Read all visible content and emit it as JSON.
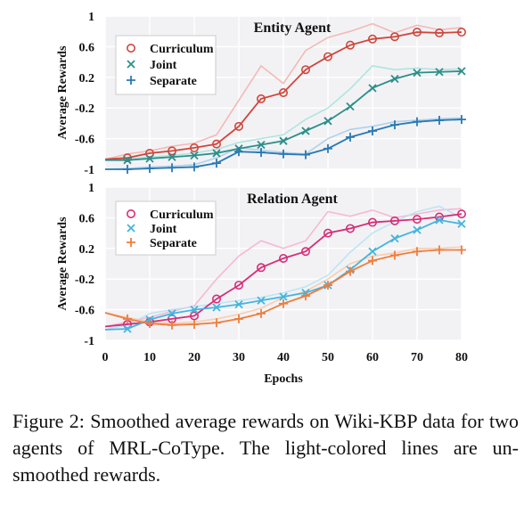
{
  "chart_data": [
    {
      "type": "line",
      "title": "Entity Agent",
      "xlabel": "",
      "ylabel": "Average Rewards",
      "xlim": [
        0,
        80
      ],
      "ylim": [
        -1,
        1
      ],
      "yticks": [
        "1",
        "0.6",
        "0.2",
        "-0.2",
        "-0.6",
        "-1"
      ],
      "ytick_values": [
        1,
        0.6,
        0.2,
        -0.2,
        -0.6,
        -1
      ],
      "grid": true,
      "legend": "top-left",
      "series": [
        {
          "name": "Curriculum",
          "marker": "circle",
          "color": "#d0463c",
          "light_color": "#f4b3ae",
          "x": [
            0,
            5,
            10,
            15,
            20,
            25,
            30,
            35,
            40,
            45,
            50,
            55,
            60,
            65,
            70,
            75,
            80
          ],
          "values": [
            -0.87,
            -0.85,
            -0.79,
            -0.76,
            -0.72,
            -0.67,
            -0.44,
            -0.08,
            0.0,
            0.3,
            0.47,
            0.62,
            0.7,
            0.73,
            0.79,
            0.78,
            0.79
          ],
          "raw": [
            -0.87,
            -0.8,
            -0.76,
            -0.7,
            -0.66,
            -0.55,
            -0.1,
            0.35,
            0.12,
            0.55,
            0.72,
            0.8,
            0.9,
            0.78,
            0.88,
            0.82,
            0.85
          ]
        },
        {
          "name": "Joint",
          "marker": "x",
          "color": "#2c8f8a",
          "light_color": "#a8e3dc",
          "x": [
            0,
            5,
            10,
            15,
            20,
            25,
            30,
            35,
            40,
            45,
            50,
            55,
            60,
            65,
            70,
            75,
            80
          ],
          "values": [
            -0.88,
            -0.88,
            -0.86,
            -0.84,
            -0.82,
            -0.79,
            -0.73,
            -0.68,
            -0.63,
            -0.5,
            -0.37,
            -0.18,
            0.06,
            0.18,
            0.26,
            0.27,
            0.28
          ],
          "raw": [
            -0.88,
            -0.86,
            -0.84,
            -0.82,
            -0.79,
            -0.74,
            -0.65,
            -0.6,
            -0.55,
            -0.35,
            -0.2,
            0.05,
            0.35,
            0.3,
            0.32,
            0.3,
            0.31
          ]
        },
        {
          "name": "Separate",
          "marker": "plus",
          "color": "#2a79b4",
          "light_color": "#a9cde9",
          "x": [
            0,
            5,
            10,
            15,
            20,
            25,
            30,
            35,
            40,
            45,
            50,
            55,
            60,
            65,
            70,
            75,
            80
          ],
          "values": [
            -1.0,
            -1.0,
            -0.99,
            -0.98,
            -0.97,
            -0.92,
            -0.77,
            -0.78,
            -0.8,
            -0.81,
            -0.73,
            -0.58,
            -0.5,
            -0.42,
            -0.38,
            -0.36,
            -0.35
          ],
          "raw": [
            -1.0,
            -0.99,
            -0.97,
            -0.96,
            -0.94,
            -0.85,
            -0.72,
            -0.75,
            -0.78,
            -0.8,
            -0.6,
            -0.48,
            -0.44,
            -0.38,
            -0.36,
            -0.34,
            -0.33
          ]
        }
      ]
    },
    {
      "type": "line",
      "title": "Relation Agent",
      "xlabel": "Epochs",
      "ylabel": "Average Rewards",
      "xlim": [
        0,
        80
      ],
      "ylim": [
        -1,
        1
      ],
      "xticks": [
        "0",
        "10",
        "20",
        "30",
        "40",
        "50",
        "60",
        "70",
        "80"
      ],
      "xtick_values": [
        0,
        10,
        20,
        30,
        40,
        50,
        60,
        70,
        80
      ],
      "yticks": [
        "1",
        "0.6",
        "0.2",
        "-0.2",
        "-0.6",
        "-1"
      ],
      "ytick_values": [
        1,
        0.6,
        0.2,
        -0.2,
        -0.6,
        -1
      ],
      "grid": true,
      "legend": "top-left",
      "series": [
        {
          "name": "Curriculum",
          "marker": "circle",
          "color": "#d62d76",
          "light_color": "#f6b2cf",
          "x": [
            0,
            5,
            10,
            15,
            20,
            25,
            30,
            35,
            40,
            45,
            50,
            55,
            60,
            65,
            70,
            75,
            80
          ],
          "values": [
            -0.82,
            -0.79,
            -0.76,
            -0.72,
            -0.68,
            -0.46,
            -0.28,
            -0.05,
            0.07,
            0.16,
            0.4,
            0.46,
            0.54,
            0.56,
            0.58,
            0.61,
            0.65
          ],
          "raw": [
            -0.82,
            -0.76,
            -0.7,
            -0.62,
            -0.55,
            -0.2,
            0.1,
            0.3,
            0.2,
            0.3,
            0.68,
            0.62,
            0.7,
            0.6,
            0.65,
            0.7,
            0.72
          ]
        },
        {
          "name": "Joint",
          "marker": "x",
          "color": "#45b5df",
          "light_color": "#b8e3f4",
          "x": [
            0,
            5,
            10,
            15,
            20,
            25,
            30,
            35,
            40,
            45,
            50,
            55,
            60,
            65,
            70,
            75,
            80
          ],
          "values": [
            -0.86,
            -0.85,
            -0.73,
            -0.65,
            -0.6,
            -0.57,
            -0.53,
            -0.48,
            -0.43,
            -0.38,
            -0.28,
            -0.08,
            0.16,
            0.33,
            0.44,
            0.57,
            0.52
          ],
          "raw": [
            -0.86,
            -0.8,
            -0.65,
            -0.6,
            -0.56,
            -0.52,
            -0.48,
            -0.44,
            -0.38,
            -0.3,
            -0.15,
            0.15,
            0.4,
            0.55,
            0.68,
            0.75,
            0.6
          ]
        },
        {
          "name": "Separate",
          "marker": "plus",
          "color": "#ee7e3c",
          "light_color": "#f9c9a9",
          "x": [
            0,
            5,
            10,
            15,
            20,
            25,
            30,
            35,
            40,
            45,
            50,
            55,
            60,
            65,
            70,
            75,
            80
          ],
          "values": [
            -0.64,
            -0.72,
            -0.78,
            -0.8,
            -0.79,
            -0.77,
            -0.72,
            -0.65,
            -0.52,
            -0.42,
            -0.28,
            -0.1,
            0.04,
            0.11,
            0.16,
            0.18,
            0.18
          ],
          "raw": [
            -0.64,
            -0.7,
            -0.76,
            -0.78,
            -0.76,
            -0.72,
            -0.66,
            -0.58,
            -0.44,
            -0.36,
            -0.2,
            0.0,
            0.1,
            0.14,
            0.2,
            0.2,
            0.22
          ]
        }
      ]
    }
  ],
  "caption": "Figure 2:  Smoothed average rewards on Wiki-KBP data for two agents of MRL-CoType. The light-colored lines are un-smoothed rewards."
}
